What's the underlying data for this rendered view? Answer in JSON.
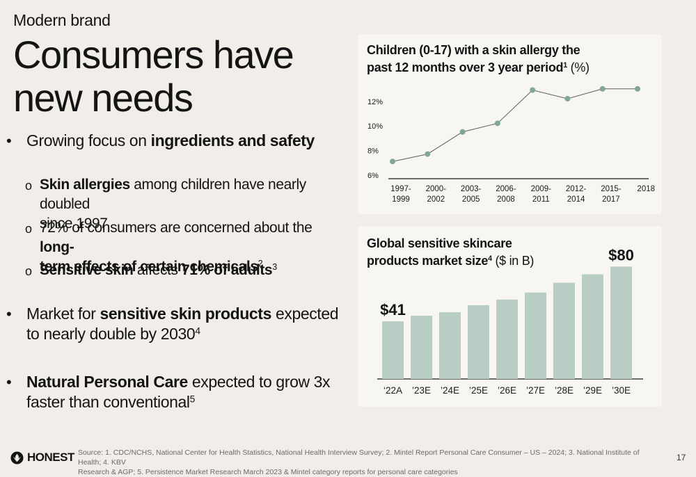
{
  "slide": {
    "eyebrow": "Modern brand",
    "headline_line1": "Consumers have",
    "headline_line2": "new needs",
    "page_number": "17"
  },
  "bullets": {
    "b1_pre": "Growing focus on ",
    "b1_bold": "ingredients and safety",
    "s1_bold": "Skin allergies",
    "s1_rest_line1": " among children have nearly doubled",
    "s1_rest_line2": "since 1997",
    "s2_pre": "72% of consumers are concerned about the ",
    "s2_bold1": "long-",
    "s2_bold2": "term effects of certain chemicals",
    "s2_sup": "2",
    "s3_bold1": "Sensitive skin",
    "s3_mid": " affects ",
    "s3_bold2": "71% of adults",
    "s3_sup": "3",
    "b2_pre": "Market for ",
    "b2_bold": "sensitive skin products",
    "b2_rest_line1": " expected",
    "b2_line2": "to nearly double by 2030",
    "b2_sup": "4",
    "b3_bold": "Natural Personal Care",
    "b3_rest_line1": " expected to grow 3x",
    "b3_line2": "faster than conventional",
    "b3_sup": "5",
    "bullet_glyph": "•",
    "sub_glyph": "o"
  },
  "footer": {
    "brand": "HONEST",
    "source_line1": "Source: 1. CDC/NCHS, National Center for Health Statistics, National Health Interview Survey; 2. Mintel Report Personal Care Consumer – US – 2024; 3. National Institute of Health;  4. KBV",
    "source_line2": "Research & AGP; 5. Persistence Market Research March 2023 & Mintel category reports for personal care categories"
  },
  "colors": {
    "background": "#f1ede8",
    "card": "#f8f6f3",
    "line_marker": "#7fa797",
    "bar": "#b8cdc4",
    "axis": "#1a1a1a"
  },
  "chart_data": [
    {
      "type": "line",
      "title_line1": "Children (0-17) with a skin allergy the",
      "title_line2": "past 12 months over 3 year period",
      "title_sup": "1",
      "title_unit": " (%)",
      "x": [
        [
          "1997-",
          "1999"
        ],
        [
          "2000-",
          "2002"
        ],
        [
          "2003-",
          "2005"
        ],
        [
          "2006-",
          "2008"
        ],
        [
          "2009-",
          "2011"
        ],
        [
          "2012-",
          "2014"
        ],
        [
          "2015-",
          "2017"
        ],
        [
          "2018",
          ""
        ]
      ],
      "values": [
        7.4,
        8.0,
        9.8,
        10.5,
        13.2,
        12.5,
        13.3,
        13.3
      ],
      "yticks": [
        6,
        8,
        10,
        12
      ],
      "ytick_labels": [
        "6%",
        "8%",
        "10%",
        "12%"
      ],
      "ylim": [
        6,
        14
      ],
      "grid": false
    },
    {
      "type": "bar",
      "title_line1": "Global sensitive skincare",
      "title_line2": "products market size",
      "title_sup": "4",
      "title_unit": " ($ in B)",
      "categories": [
        "‘22A",
        "’23E",
        "’24E",
        "’25E",
        "’26E",
        "’27E",
        "’28E",
        "’29E",
        "’30E"
      ],
      "values": [
        41,
        45,
        47.5,
        52.5,
        56.5,
        61.5,
        68.5,
        74.5,
        80
      ],
      "data_labels": [
        "$41",
        "",
        "",
        "",
        "",
        "",
        "",
        "",
        "$80"
      ],
      "ylim": [
        0,
        85
      ],
      "grid": false
    }
  ]
}
